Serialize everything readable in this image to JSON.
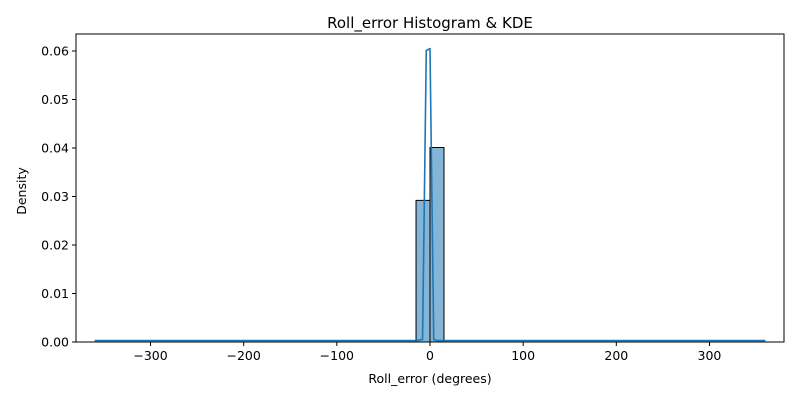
{
  "chart_data": {
    "type": "bar",
    "title": "Roll_error Histogram & KDE",
    "xlabel": "Roll_error (degrees)",
    "ylabel": "Density",
    "xlim": [
      -380,
      380
    ],
    "ylim": [
      0,
      0.0635
    ],
    "xticks": [
      -300,
      -200,
      -100,
      0,
      100,
      200,
      300
    ],
    "xtick_labels": [
      "−300",
      "−200",
      "−100",
      "0",
      "100",
      "200",
      "300"
    ],
    "yticks": [
      0.0,
      0.01,
      0.02,
      0.03,
      0.04,
      0.05,
      0.06
    ],
    "ytick_labels": [
      "0.00",
      "0.01",
      "0.02",
      "0.03",
      "0.04",
      "0.05",
      "0.06"
    ],
    "grid": false,
    "histogram": {
      "bin_edges": [
        -15,
        0,
        15
      ],
      "densities": [
        0.0292,
        0.0401
      ],
      "fill_color": "#1f77b4",
      "fill_opacity": 0.55,
      "edge_color": "#000000"
    },
    "kde": {
      "color": "#1f77b4",
      "x": [
        -360,
        -15,
        -8,
        -4,
        0,
        4,
        8,
        15,
        360
      ],
      "y": [
        0.0003,
        0.0003,
        0.0005,
        0.0601,
        0.0605,
        0.0005,
        0.0003,
        0.0003,
        0.0003
      ]
    }
  }
}
